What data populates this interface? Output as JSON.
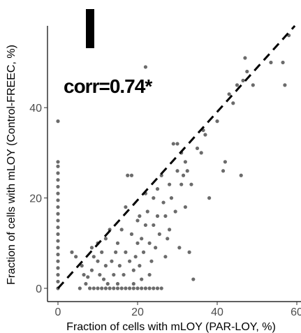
{
  "chart_data": {
    "type": "scatter",
    "title": "",
    "xlabel": "Fraction of cells with mLOY (PAR-LOY, %)",
    "ylabel": "Fraction of cells with mLOY (Control-FREEC, %)",
    "xlim": [
      -2,
      61
    ],
    "ylim": [
      -3,
      58
    ],
    "x_ticks": [
      0,
      20,
      40,
      60
    ],
    "y_ticks": [
      0,
      20,
      40
    ],
    "grid": false,
    "reference_line": {
      "style": "dashed",
      "slope": 1,
      "intercept": 0,
      "color": "#000000"
    },
    "annotation": "corr=0.74*",
    "point_color": "#6b6b6b",
    "series": [
      {
        "points": [
          [
            0,
            0
          ],
          [
            0,
            1.5
          ],
          [
            0,
            3
          ],
          [
            0,
            4.5
          ],
          [
            0,
            6
          ],
          [
            0,
            7.5
          ],
          [
            0,
            9
          ],
          [
            0,
            10.5
          ],
          [
            0,
            12
          ],
          [
            0,
            13.5
          ],
          [
            0,
            15
          ],
          [
            0,
            16.5
          ],
          [
            0,
            18
          ],
          [
            0,
            19.5
          ],
          [
            0,
            21
          ],
          [
            0,
            22.5
          ],
          [
            0,
            24
          ],
          [
            0,
            25.5
          ],
          [
            0,
            27
          ],
          [
            0,
            28
          ],
          [
            0,
            37
          ],
          [
            3.5,
            8
          ],
          [
            4.5,
            7
          ],
          [
            5.5,
            0
          ],
          [
            6,
            5
          ],
          [
            6.5,
            3
          ],
          [
            7,
            1
          ],
          [
            7.5,
            2.5
          ],
          [
            8,
            0
          ],
          [
            8.5,
            4
          ],
          [
            8.5,
            9
          ],
          [
            9,
            0
          ],
          [
            9,
            7
          ],
          [
            10,
            0
          ],
          [
            10,
            6
          ],
          [
            10,
            10
          ],
          [
            10.5,
            3
          ],
          [
            11,
            0
          ],
          [
            11,
            8
          ],
          [
            11.5,
            2
          ],
          [
            12,
            0
          ],
          [
            12,
            5
          ],
          [
            12,
            11
          ],
          [
            12.5,
            1
          ],
          [
            13,
            0
          ],
          [
            13,
            13
          ],
          [
            13.5,
            6
          ],
          [
            14,
            0
          ],
          [
            14,
            3
          ],
          [
            14.5,
            8
          ],
          [
            15,
            0
          ],
          [
            15,
            1
          ],
          [
            15,
            10
          ],
          [
            15.5,
            5
          ],
          [
            16,
            0
          ],
          [
            16,
            13
          ],
          [
            16.5,
            3
          ],
          [
            17,
            0
          ],
          [
            17,
            8
          ],
          [
            17,
            18
          ],
          [
            17.5,
            25
          ],
          [
            18,
            0
          ],
          [
            18,
            6
          ],
          [
            18.5,
            12
          ],
          [
            18.5,
            25
          ],
          [
            19,
            0
          ],
          [
            19,
            1
          ],
          [
            19,
            4
          ],
          [
            19.5,
            7
          ],
          [
            20,
            0
          ],
          [
            20,
            10
          ],
          [
            20,
            15
          ],
          [
            20.5,
            5
          ],
          [
            20.5,
            16
          ],
          [
            21,
            0
          ],
          [
            21,
            2
          ],
          [
            21,
            11
          ],
          [
            21.5,
            8
          ],
          [
            22,
            0
          ],
          [
            22,
            14
          ],
          [
            22,
            21
          ],
          [
            22.5,
            17
          ],
          [
            23,
            0
          ],
          [
            23,
            3
          ],
          [
            23,
            10
          ],
          [
            23.5,
            6
          ],
          [
            24,
            0
          ],
          [
            24,
            14
          ],
          [
            24,
            20
          ],
          [
            24.5,
            9
          ],
          [
            25,
            0
          ],
          [
            25,
            16
          ],
          [
            25,
            22
          ],
          [
            25.5,
            12
          ],
          [
            26,
            0
          ],
          [
            26,
            25
          ],
          [
            22,
            49
          ],
          [
            26.5,
            19
          ],
          [
            27,
            7
          ],
          [
            27,
            16
          ],
          [
            27.5,
            11
          ],
          [
            28,
            13
          ],
          [
            28,
            23
          ],
          [
            28.5,
            20
          ],
          [
            29,
            32
          ],
          [
            29.5,
            17
          ],
          [
            30,
            26
          ],
          [
            30,
            32
          ],
          [
            30.5,
            9
          ],
          [
            31,
            23
          ],
          [
            31,
            30
          ],
          [
            31.5,
            25
          ],
          [
            32,
            18
          ],
          [
            32,
            28
          ],
          [
            32.5,
            26
          ],
          [
            33,
            8
          ],
          [
            33.5,
            23
          ],
          [
            34,
            2
          ],
          [
            35,
            31
          ],
          [
            36,
            30
          ],
          [
            36.5,
            35
          ],
          [
            37,
            34
          ],
          [
            38,
            20
          ],
          [
            40,
            37
          ],
          [
            41.5,
            26
          ],
          [
            42,
            28
          ],
          [
            43,
            43
          ],
          [
            44,
            41
          ],
          [
            45,
            45
          ],
          [
            46,
            25
          ],
          [
            46.5,
            46
          ],
          [
            47,
            51
          ],
          [
            47.5,
            48
          ],
          [
            49,
            45
          ],
          [
            53.5,
            50
          ],
          [
            56.5,
            50
          ],
          [
            57,
            45
          ],
          [
            58,
            56
          ]
        ]
      }
    ]
  }
}
